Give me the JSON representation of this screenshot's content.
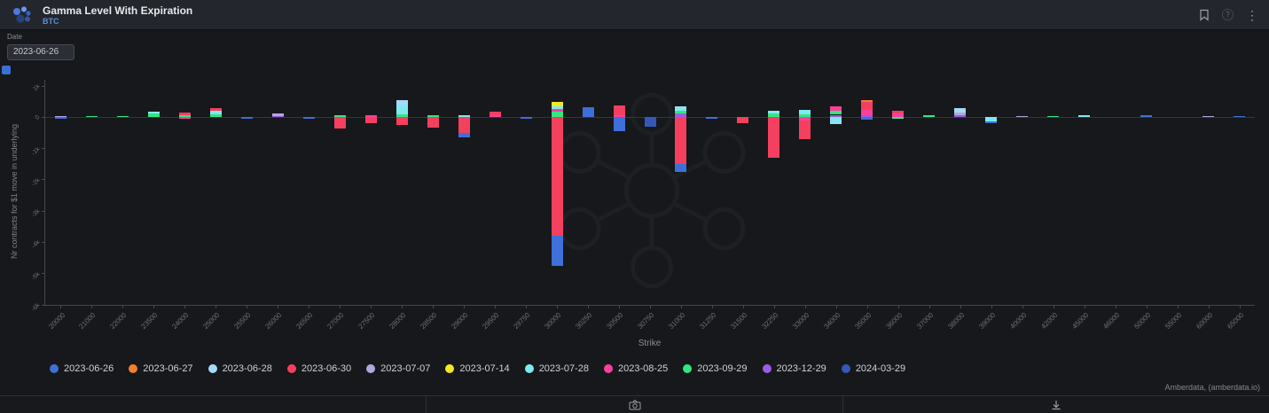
{
  "header": {
    "title": "Gamma Level With Expiration",
    "symbol": "BTC"
  },
  "controls": {
    "date_label": "Date",
    "date_value": "2023-06-26"
  },
  "glyphs": {
    "kebab": "⋮",
    "help": "?"
  },
  "icons": {
    "logo": "amberdata-logo-icon",
    "bookmark": "bookmark-icon",
    "help": "help-icon",
    "menu": "kebab-menu-icon",
    "screenshot": "camera-icon",
    "download": "download-icon",
    "chart_settings": "chart-settings-icon"
  },
  "chart_data": {
    "type": "bar",
    "stacked": true,
    "title": "Gamma Level With Expiration",
    "xlabel": "Strike",
    "ylabel": "Nr contracts for $1 move in underlying",
    "ylim": [
      -6000,
      1200
    ],
    "yticks": [
      1000,
      0,
      -1000,
      -2000,
      -3000,
      -4000,
      -5000,
      -6000
    ],
    "ytick_labels": [
      "1k",
      "0",
      "-1k",
      "-2k",
      "-3k",
      "-4k",
      "-5k",
      "-6k"
    ],
    "grid": false,
    "legend_position": "bottom",
    "categories": [
      20000,
      21000,
      22000,
      23500,
      24000,
      25000,
      25500,
      26000,
      26500,
      27000,
      27500,
      28000,
      28500,
      29000,
      29500,
      29750,
      30000,
      30250,
      30500,
      30750,
      31000,
      31250,
      31500,
      32250,
      33000,
      34000,
      35000,
      36000,
      37000,
      38000,
      39000,
      40000,
      42000,
      45000,
      46000,
      50000,
      55000,
      60000,
      65000
    ],
    "series": [
      {
        "name": "2023-06-26",
        "color": "#3f6fd8",
        "values": [
          -60,
          0,
          0,
          0,
          0,
          0,
          -40,
          0,
          -50,
          0,
          0,
          0,
          0,
          -150,
          0,
          -60,
          -950,
          320,
          -450,
          0,
          -250,
          -40,
          0,
          0,
          0,
          0,
          -80,
          0,
          0,
          0,
          -80,
          0,
          0,
          0,
          0,
          80,
          0,
          0,
          50
        ]
      },
      {
        "name": "2023-06-27",
        "color": "#f07f2e",
        "values": [
          0,
          0,
          0,
          0,
          0,
          0,
          0,
          0,
          0,
          0,
          0,
          0,
          0,
          0,
          0,
          0,
          0,
          0,
          0,
          0,
          0,
          0,
          0,
          0,
          0,
          0,
          60,
          0,
          0,
          0,
          0,
          0,
          0,
          0,
          0,
          0,
          0,
          0,
          0
        ]
      },
      {
        "name": "2023-06-28",
        "color": "#a6d9f7",
        "values": [
          0,
          0,
          0,
          0,
          0,
          0,
          0,
          0,
          0,
          0,
          0,
          160,
          0,
          0,
          0,
          0,
          0,
          0,
          0,
          0,
          60,
          0,
          0,
          0,
          0,
          -60,
          0,
          0,
          0,
          150,
          0,
          0,
          0,
          0,
          0,
          0,
          0,
          0,
          0
        ]
      },
      {
        "name": "2023-06-30",
        "color": "#f43f5e",
        "values": [
          0,
          0,
          0,
          0,
          80,
          80,
          0,
          0,
          0,
          -350,
          -200,
          -250,
          -320,
          -500,
          120,
          0,
          -3800,
          0,
          300,
          0,
          -1500,
          0,
          -180,
          -1300,
          -600,
          0,
          250,
          80,
          0,
          0,
          0,
          0,
          0,
          0,
          0,
          0,
          0,
          0,
          0
        ]
      },
      {
        "name": "2023-07-07",
        "color": "#b3a6e0",
        "values": [
          30,
          0,
          0,
          0,
          0,
          0,
          0,
          80,
          0,
          0,
          0,
          0,
          0,
          0,
          0,
          0,
          0,
          0,
          0,
          0,
          0,
          0,
          0,
          0,
          0,
          0,
          0,
          0,
          0,
          80,
          0,
          40,
          0,
          0,
          0,
          0,
          0,
          40,
          0
        ]
      },
      {
        "name": "2023-07-14",
        "color": "#f5e626",
        "values": [
          0,
          0,
          0,
          0,
          0,
          0,
          0,
          0,
          0,
          0,
          0,
          0,
          0,
          0,
          0,
          0,
          120,
          0,
          0,
          0,
          0,
          0,
          0,
          0,
          0,
          0,
          0,
          0,
          0,
          0,
          0,
          0,
          0,
          0,
          0,
          0,
          0,
          0,
          0
        ]
      },
      {
        "name": "2023-07-28",
        "color": "#7fe9f2",
        "values": [
          0,
          0,
          0,
          60,
          0,
          120,
          0,
          0,
          0,
          0,
          0,
          280,
          0,
          80,
          0,
          0,
          100,
          0,
          0,
          0,
          80,
          0,
          0,
          80,
          150,
          -150,
          0,
          0,
          0,
          0,
          -120,
          0,
          0,
          60,
          0,
          0,
          0,
          0,
          0
        ]
      },
      {
        "name": "2023-08-25",
        "color": "#fa3f9e",
        "values": [
          0,
          0,
          0,
          0,
          -60,
          0,
          0,
          0,
          0,
          0,
          60,
          0,
          0,
          0,
          60,
          0,
          80,
          0,
          80,
          0,
          0,
          0,
          0,
          0,
          -100,
          150,
          180,
          120,
          0,
          0,
          0,
          0,
          0,
          0,
          0,
          0,
          0,
          0,
          0
        ]
      },
      {
        "name": "2023-09-29",
        "color": "#34e580",
        "values": [
          0,
          40,
          40,
          120,
          60,
          100,
          0,
          0,
          0,
          60,
          0,
          100,
          60,
          0,
          0,
          0,
          180,
          0,
          0,
          0,
          100,
          0,
          0,
          120,
          100,
          120,
          0,
          -60,
          60,
          0,
          0,
          0,
          30,
          0,
          0,
          0,
          0,
          0,
          0
        ]
      },
      {
        "name": "2023-12-29",
        "color": "#9d5ce6",
        "values": [
          0,
          0,
          0,
          0,
          0,
          0,
          0,
          40,
          0,
          0,
          0,
          0,
          0,
          0,
          0,
          0,
          0,
          0,
          0,
          0,
          120,
          0,
          0,
          0,
          0,
          80,
          70,
          0,
          0,
          60,
          0,
          0,
          0,
          0,
          0,
          0,
          0,
          0,
          0
        ]
      },
      {
        "name": "2024-03-29",
        "color": "#3558b8",
        "values": [
          0,
          0,
          0,
          0,
          0,
          0,
          0,
          0,
          0,
          0,
          0,
          0,
          0,
          0,
          0,
          0,
          0,
          0,
          0,
          -300,
          0,
          0,
          0,
          0,
          0,
          0,
          0,
          0,
          0,
          0,
          0,
          0,
          0,
          0,
          0,
          0,
          0,
          0,
          0
        ]
      }
    ]
  },
  "footer": {
    "attribution": "Amberdata, (amberdata.io)"
  }
}
